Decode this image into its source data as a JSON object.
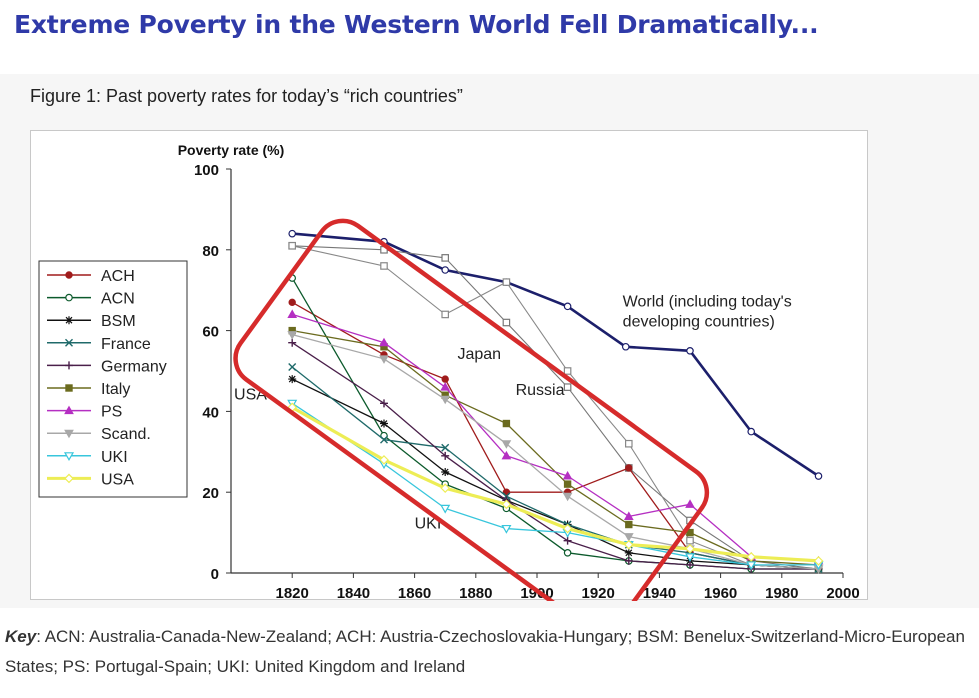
{
  "headline": "Extreme Poverty in the Western World Fell Dramatically...",
  "figure_caption": "Figure 1: Past poverty rates for today’s “rich countries”",
  "key": {
    "label": "Key",
    "text": ": ACN: Australia-Canada-New-Zealand; ACH: Austria-Czechoslovakia-Hungary; BSM: Benelux-Switzerland-Micro-European States; PS: Portugal-Spain; UKI: United Kingdom and Ireland"
  },
  "chart_data": {
    "type": "line",
    "ylabel": "Poverty rate (%)",
    "xlabel": "",
    "xlim": [
      1800,
      2000
    ],
    "ylim": [
      0,
      100
    ],
    "xticks": [
      1820,
      1840,
      1860,
      1880,
      1900,
      1920,
      1940,
      1960,
      1980,
      2000
    ],
    "yticks": [
      0,
      20,
      40,
      60,
      80,
      100
    ],
    "grid": false,
    "legend_position": "left",
    "series": [
      {
        "name": "ACH",
        "color": "#a01c1c",
        "marker": "circle",
        "points": [
          [
            1820,
            67
          ],
          [
            1850,
            54
          ],
          [
            1870,
            48
          ],
          [
            1890,
            20
          ],
          [
            1910,
            20
          ],
          [
            1930,
            26
          ],
          [
            1950,
            5
          ],
          [
            1970,
            2
          ],
          [
            1992,
            1
          ]
        ]
      },
      {
        "name": "ACN",
        "color": "#0c5a2c",
        "marker": "circle-open",
        "points": [
          [
            1820,
            73
          ],
          [
            1850,
            34
          ],
          [
            1870,
            22
          ],
          [
            1890,
            16
          ],
          [
            1910,
            5
          ],
          [
            1930,
            3
          ],
          [
            1950,
            2
          ],
          [
            1970,
            1
          ],
          [
            1992,
            1
          ]
        ]
      },
      {
        "name": "BSM",
        "color": "#111111",
        "marker": "star",
        "points": [
          [
            1820,
            48
          ],
          [
            1850,
            37
          ],
          [
            1870,
            25
          ],
          [
            1890,
            18
          ],
          [
            1910,
            12
          ],
          [
            1930,
            5
          ],
          [
            1950,
            3
          ],
          [
            1970,
            2
          ],
          [
            1992,
            1
          ]
        ]
      },
      {
        "name": "France",
        "color": "#1f6a6a",
        "marker": "x",
        "points": [
          [
            1820,
            51
          ],
          [
            1850,
            33
          ],
          [
            1870,
            31
          ],
          [
            1890,
            19
          ],
          [
            1910,
            12
          ],
          [
            1930,
            7
          ],
          [
            1950,
            5
          ],
          [
            1970,
            2
          ],
          [
            1992,
            1
          ]
        ]
      },
      {
        "name": "Germany",
        "color": "#4a1f4a",
        "marker": "plus",
        "points": [
          [
            1820,
            57
          ],
          [
            1850,
            42
          ],
          [
            1870,
            29
          ],
          [
            1890,
            18
          ],
          [
            1910,
            8
          ],
          [
            1930,
            3
          ],
          [
            1950,
            2
          ],
          [
            1970,
            1
          ],
          [
            1992,
            1
          ]
        ]
      },
      {
        "name": "Italy",
        "color": "#6b6b1f",
        "marker": "square",
        "points": [
          [
            1820,
            60
          ],
          [
            1850,
            56
          ],
          [
            1870,
            44
          ],
          [
            1890,
            37
          ],
          [
            1910,
            22
          ],
          [
            1930,
            12
          ],
          [
            1950,
            10
          ],
          [
            1970,
            3
          ],
          [
            1992,
            2
          ]
        ]
      },
      {
        "name": "PS",
        "color": "#b52fc2",
        "marker": "triangle",
        "points": [
          [
            1820,
            64
          ],
          [
            1850,
            57
          ],
          [
            1870,
            46
          ],
          [
            1890,
            29
          ],
          [
            1910,
            24
          ],
          [
            1930,
            14
          ],
          [
            1950,
            17
          ],
          [
            1970,
            4
          ],
          [
            1992,
            3
          ]
        ]
      },
      {
        "name": "Scand.",
        "color": "#a8a8a8",
        "marker": "triangle-down",
        "points": [
          [
            1820,
            59
          ],
          [
            1850,
            53
          ],
          [
            1870,
            43
          ],
          [
            1890,
            32
          ],
          [
            1910,
            19
          ],
          [
            1930,
            9
          ],
          [
            1950,
            6
          ],
          [
            1970,
            2
          ],
          [
            1992,
            1
          ]
        ]
      },
      {
        "name": "UKI",
        "color": "#38c6dc",
        "marker": "triangle-down-open",
        "points": [
          [
            1820,
            42
          ],
          [
            1850,
            27
          ],
          [
            1870,
            16
          ],
          [
            1890,
            11
          ],
          [
            1910,
            10
          ],
          [
            1930,
            7
          ],
          [
            1950,
            4
          ],
          [
            1970,
            2
          ],
          [
            1992,
            2
          ]
        ]
      },
      {
        "name": "USA",
        "color": "#eded55",
        "marker": "diamond-open",
        "points": [
          [
            1820,
            41
          ],
          [
            1850,
            28
          ],
          [
            1870,
            21
          ],
          [
            1890,
            17
          ],
          [
            1910,
            11
          ],
          [
            1930,
            7
          ],
          [
            1950,
            6
          ],
          [
            1970,
            4
          ],
          [
            1992,
            3
          ]
        ]
      }
    ],
    "unlisted_series": [
      {
        "label": "World (including today's developing countries)",
        "color": "#1c1f6b",
        "points": [
          [
            1820,
            84
          ],
          [
            1850,
            82
          ],
          [
            1870,
            75
          ],
          [
            1890,
            72
          ],
          [
            1910,
            66
          ],
          [
            1929,
            56
          ],
          [
            1950,
            55
          ],
          [
            1970,
            35
          ],
          [
            1992,
            24
          ]
        ]
      },
      {
        "label": "Japan",
        "color": "#777777",
        "points": [
          [
            1820,
            81
          ],
          [
            1850,
            80
          ],
          [
            1870,
            78
          ],
          [
            1890,
            62
          ],
          [
            1910,
            46
          ],
          [
            1930,
            26
          ],
          [
            1950,
            13
          ],
          [
            1970,
            3
          ],
          [
            1992,
            1
          ]
        ]
      },
      {
        "label": "Russia",
        "color": "#888888",
        "points": [
          [
            1820,
            81
          ],
          [
            1850,
            76
          ],
          [
            1870,
            64
          ],
          [
            1890,
            72
          ],
          [
            1910,
            50
          ],
          [
            1930,
            32
          ],
          [
            1950,
            8
          ],
          [
            1970,
            2
          ],
          [
            1992,
            1
          ]
        ]
      }
    ],
    "annotations": [
      {
        "text": "World (including today's",
        "anchor": [
          1928,
          66
        ]
      },
      {
        "text": "developing countries)",
        "anchor": [
          1928,
          61
        ]
      },
      {
        "text": "Japan",
        "anchor": [
          1874,
          53
        ]
      },
      {
        "text": "Russia",
        "anchor": [
          1893,
          44
        ]
      },
      {
        "text": "USA",
        "anchor": [
          1801,
          43
        ]
      },
      {
        "text": "UKI",
        "anchor": [
          1860,
          11
        ]
      }
    ],
    "highlight": {
      "shape": "rounded-box",
      "color": "#d62b2b"
    }
  }
}
